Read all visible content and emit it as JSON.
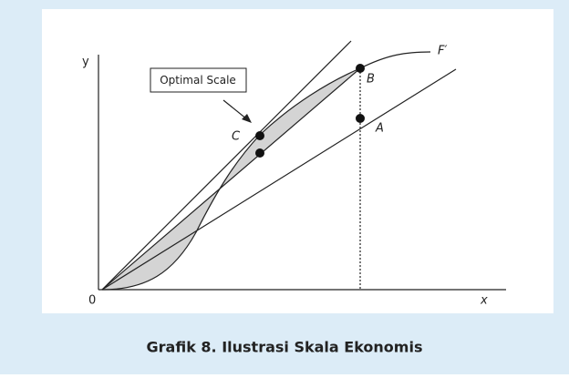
{
  "axes": {
    "y_label": "y",
    "x_label": "x",
    "origin_label": "0"
  },
  "curve_label": "F′",
  "points": {
    "B": "B",
    "A": "A",
    "C": "C"
  },
  "callout": "Optimal Scale",
  "caption": "Grafik 8. Ilustrasi Skala Ekonomis"
}
